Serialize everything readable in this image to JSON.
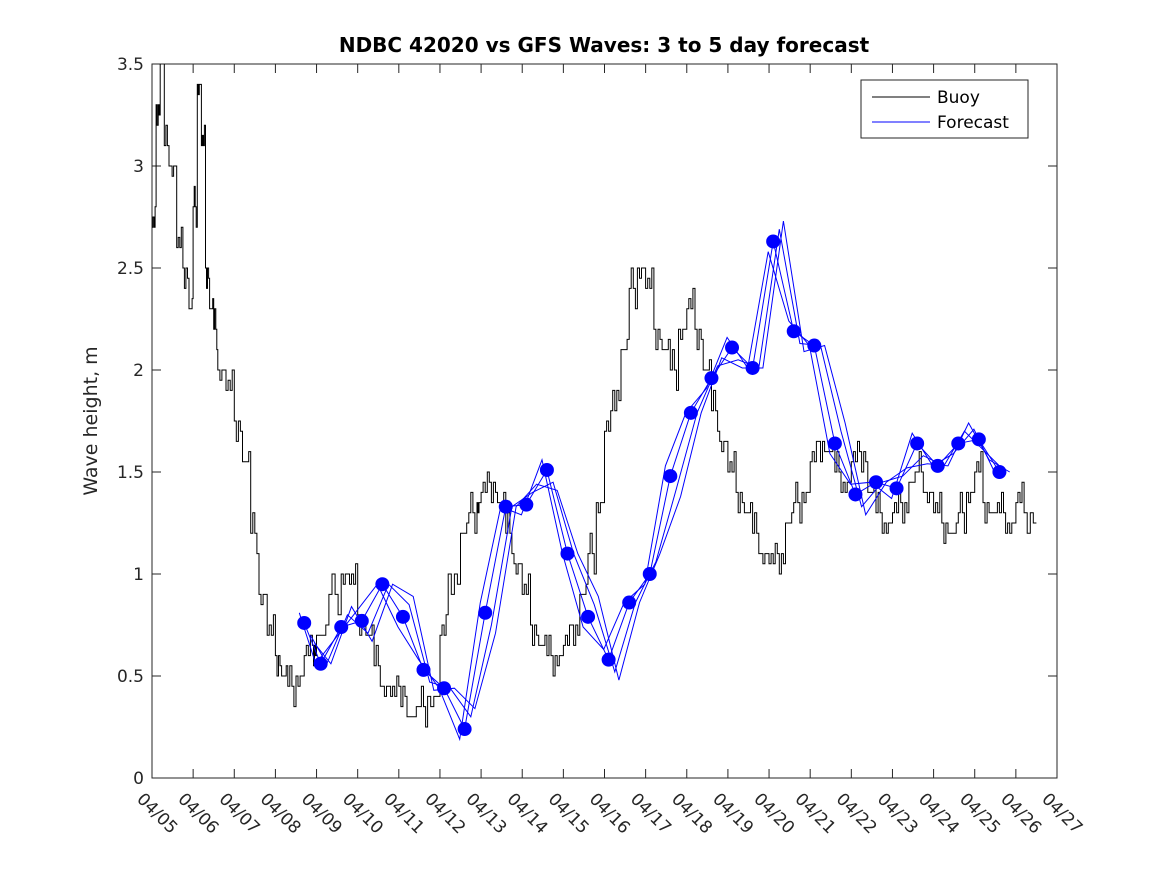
{
  "chart_data": {
    "type": "line",
    "title": "NDBC 42020 vs GFS Waves: 3 to 5 day forecast",
    "xlabel": "",
    "ylabel": "Wave height, m",
    "xlim": [
      "04/05",
      "04/27"
    ],
    "ylim": [
      0,
      3.5
    ],
    "x_ticks": [
      "04/05",
      "04/06",
      "04/07",
      "04/08",
      "04/09",
      "04/10",
      "04/11",
      "04/12",
      "04/13",
      "04/14",
      "04/15",
      "04/16",
      "04/17",
      "04/18",
      "04/19",
      "04/20",
      "04/21",
      "04/22",
      "04/23",
      "04/24",
      "04/25",
      "04/26",
      "04/27"
    ],
    "y_ticks": [
      "0",
      "0.5",
      "1",
      "1.5",
      "2",
      "2.5",
      "3",
      "3.5"
    ],
    "grid": false,
    "legend": {
      "position": "top-right",
      "entries": [
        "Buoy",
        "Forecast"
      ]
    },
    "colors": {
      "buoy": "#000000",
      "forecast": "#0000ff"
    },
    "series": [
      {
        "name": "Buoy",
        "x_day_of_april": [
          5.0,
          5.1,
          5.2,
          5.3,
          5.45,
          5.6,
          5.75,
          5.9,
          6.0,
          6.1,
          6.2,
          6.3,
          6.4,
          6.5,
          6.6,
          6.8,
          7.0,
          7.2,
          7.4,
          7.6,
          7.8,
          8.0,
          8.15,
          8.3,
          8.5,
          8.7,
          8.9,
          9.0,
          9.3,
          9.6,
          9.8,
          10.0,
          10.2,
          10.4,
          10.6,
          10.8,
          11.0,
          11.2,
          11.5,
          11.7,
          12.0,
          12.2,
          12.5,
          12.7,
          12.9,
          13.0,
          13.2,
          13.4,
          13.6,
          13.8,
          14.0,
          14.2,
          14.4,
          14.6,
          14.8,
          15.0,
          15.2,
          15.4,
          15.6,
          15.8,
          16.0,
          16.2,
          16.4,
          16.6,
          16.8,
          17.0,
          17.2,
          17.4,
          17.6,
          17.8,
          18.0,
          18.2,
          18.4,
          18.6,
          18.8,
          19.0,
          19.2,
          19.4,
          19.6,
          19.8,
          20.0,
          20.2,
          20.4,
          20.6,
          20.8,
          21.0,
          21.2,
          21.4,
          21.6,
          21.8,
          22.0,
          22.2,
          22.4,
          22.6,
          22.8,
          23.0,
          23.2,
          23.4,
          23.6,
          23.8,
          24.0,
          24.2,
          24.4,
          24.6,
          24.8,
          25.0,
          25.2,
          25.4,
          25.6,
          25.8,
          26.0,
          26.2
        ],
        "values": [
          2.7,
          3.3,
          3.6,
          3.1,
          3.0,
          2.6,
          2.5,
          2.3,
          2.8,
          3.4,
          3.1,
          2.5,
          2.3,
          2.2,
          2.0,
          1.9,
          1.75,
          1.55,
          1.2,
          0.9,
          0.7,
          0.6,
          0.5,
          0.45,
          0.5,
          0.6,
          0.65,
          0.7,
          0.9,
          1.0,
          0.95,
          0.8,
          0.7,
          0.55,
          0.45,
          0.4,
          0.45,
          0.3,
          0.35,
          0.4,
          0.7,
          1.0,
          1.2,
          1.3,
          1.35,
          1.4,
          1.45,
          1.35,
          1.2,
          1.05,
          0.9,
          0.75,
          0.65,
          0.6,
          0.6,
          0.65,
          0.75,
          0.9,
          1.1,
          1.35,
          1.7,
          1.9,
          2.1,
          2.4,
          2.5,
          2.4,
          2.2,
          2.1,
          2.0,
          2.2,
          2.3,
          2.2,
          2.0,
          1.8,
          1.65,
          1.5,
          1.4,
          1.3,
          1.2,
          1.1,
          1.05,
          1.1,
          1.25,
          1.35,
          1.4,
          1.55,
          1.65,
          1.6,
          1.5,
          1.45,
          1.55,
          1.6,
          1.4,
          1.3,
          1.25,
          1.3,
          1.35,
          1.45,
          1.5,
          1.4,
          1.3,
          1.25,
          1.2,
          1.3,
          1.4,
          1.5,
          1.35,
          1.3,
          1.3,
          1.25,
          1.35,
          1.3
        ]
      },
      {
        "name": "Forecast",
        "points_day_of_april": [
          8.7,
          9.1,
          9.6,
          10.1,
          10.6,
          11.1,
          11.6,
          12.1,
          12.6,
          13.1,
          13.6,
          14.1,
          14.6,
          15.1,
          15.6,
          16.1,
          16.6,
          17.1,
          17.6,
          18.1,
          18.6,
          19.1,
          19.6,
          20.1,
          20.6,
          21.1,
          21.6,
          22.1,
          22.6,
          23.1,
          23.6,
          24.1,
          24.6,
          25.1,
          25.6
        ],
        "points_values": [
          0.76,
          0.56,
          0.74,
          0.77,
          0.95,
          0.79,
          0.53,
          0.44,
          0.24,
          0.81,
          1.33,
          1.34,
          1.51,
          1.1,
          0.79,
          0.58,
          0.86,
          1.0,
          1.48,
          1.79,
          1.96,
          2.11,
          2.01,
          2.63,
          2.19,
          2.12,
          1.64,
          1.39,
          1.45,
          1.42,
          1.64,
          1.53,
          1.64,
          1.66,
          1.5
        ]
      }
    ]
  }
}
